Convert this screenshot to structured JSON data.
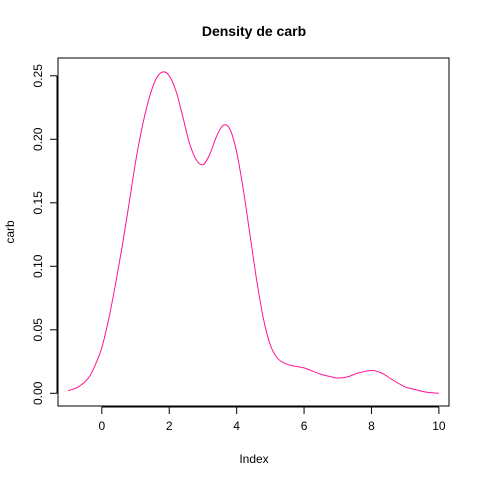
{
  "chart_data": {
    "type": "line",
    "title": "Density de  carb",
    "xlabel": "Index",
    "ylabel": "carb",
    "xlim": [
      -1.3,
      10.3
    ],
    "ylim": [
      -0.01,
      0.264
    ],
    "x_ticks": [
      0,
      2,
      4,
      6,
      8,
      10
    ],
    "y_ticks": [
      0.0,
      0.05,
      0.1,
      0.15,
      0.2,
      0.25
    ],
    "x_tick_labels": [
      "0",
      "2",
      "4",
      "6",
      "8",
      "10"
    ],
    "y_tick_labels": [
      "0.00",
      "0.05",
      "0.10",
      "0.15",
      "0.20",
      "0.25"
    ],
    "grid": false,
    "line_color": "#FF1493",
    "series": [
      {
        "x": [
          -1.0,
          -0.7,
          -0.4,
          -0.2,
          0.0,
          0.2,
          0.4,
          0.6,
          0.8,
          1.0,
          1.2,
          1.4,
          1.6,
          1.8,
          2.0,
          2.2,
          2.4,
          2.6,
          2.8,
          3.0,
          3.2,
          3.4,
          3.6,
          3.8,
          4.0,
          4.2,
          4.4,
          4.6,
          4.8,
          5.0,
          5.2,
          5.4,
          5.6,
          5.8,
          6.0,
          6.2,
          6.5,
          6.8,
          7.0,
          7.3,
          7.6,
          8.0,
          8.3,
          8.6,
          9.0,
          9.3,
          9.6,
          10.0
        ],
        "y": [
          0.002,
          0.005,
          0.012,
          0.022,
          0.036,
          0.058,
          0.085,
          0.115,
          0.148,
          0.182,
          0.21,
          0.232,
          0.247,
          0.253,
          0.25,
          0.238,
          0.218,
          0.197,
          0.184,
          0.18,
          0.188,
          0.202,
          0.211,
          0.208,
          0.19,
          0.16,
          0.124,
          0.088,
          0.058,
          0.038,
          0.028,
          0.024,
          0.022,
          0.021,
          0.02,
          0.018,
          0.015,
          0.013,
          0.012,
          0.013,
          0.016,
          0.018,
          0.016,
          0.011,
          0.005,
          0.003,
          0.001,
          0.0
        ]
      }
    ]
  }
}
